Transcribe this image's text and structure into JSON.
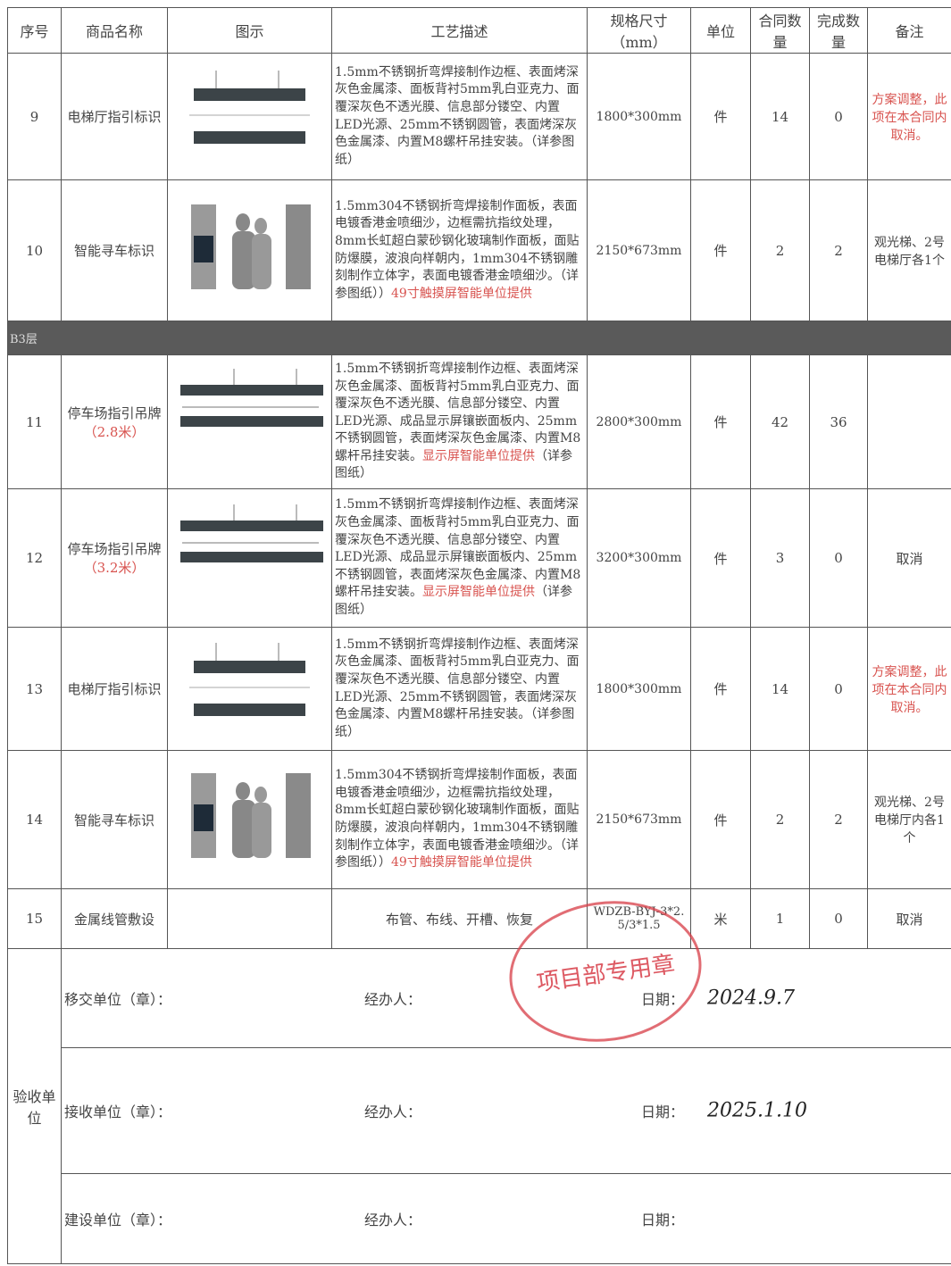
{
  "header": {
    "columns": [
      "序号",
      "商品名称",
      "图示",
      "工艺描述",
      "规格尺寸（mm）",
      "单位",
      "合同数量",
      "完成数量",
      "备注"
    ]
  },
  "rows": [
    {
      "no": "9",
      "name": "电梯厅指引标识",
      "description": "1.5mm不锈钢折弯焊接制作边框、表面烤深灰色金属漆、面板背衬5mm乳白亚克力、面覆深灰色不透光膜、信息部分镂空、内置LED光源、25mm不锈钢圆管，表面烤深灰色金属漆、内置M8螺杆吊挂安装。（详参图纸）",
      "spec": "1800*300mm",
      "unit": "件",
      "contract_qty": "14",
      "done_qty": "0",
      "remark": "方案调整，此项在本合同内取消。",
      "remark_color": "#d8534f"
    },
    {
      "no": "10",
      "name": "智能寻车标识",
      "description": "1.5mm304不锈钢折弯焊接制作面板，表面电镀香港金喷细沙，边框需抗指纹处理，8mm长虹超白蒙砂钢化玻璃制作面板，面贴防爆膜，波浪向样朝内，1mm304不锈钢雕刻制作立体字，表面电镀香港金喷细沙。（详参图纸））",
      "description_note": "49寸触摸屏智能单位提供",
      "spec": "2150*673mm",
      "unit": "件",
      "contract_qty": "2",
      "done_qty": "2",
      "remark": "观光梯、2号电梯厅各1个"
    },
    {
      "section": "B3层"
    },
    {
      "no": "11",
      "name": "停车场指引吊牌",
      "name_note": "（2.8米）",
      "description": "1.5mm不锈钢折弯焊接制作边框、表面烤深灰色金属漆、面板背衬5mm乳白亚克力、面覆深灰色不透光膜、信息部分镂空、内置LED光源、成品显示屏镶嵌面板内、25mm不锈钢圆管，表面烤深灰色金属漆、内置M8螺杆吊挂安装。",
      "description_note": "显示屏智能单位提供",
      "description_tail": "（详参图纸）",
      "spec": "2800*300mm",
      "unit": "件",
      "contract_qty": "42",
      "done_qty": "36"
    },
    {
      "no": "12",
      "name": "停车场指引吊牌",
      "name_note": "（3.2米）",
      "description": "1.5mm不锈钢折弯焊接制作边框、表面烤深灰色金属漆、面板背衬5mm乳白亚克力、面覆深灰色不透光膜、信息部分镂空、内置LED光源、成品显示屏镶嵌面板内、25mm不锈钢圆管，表面烤深灰色金属漆、内置M8螺杆吊挂安装。",
      "description_note": "显示屏智能单位提供",
      "description_tail": "（详参图纸）",
      "spec": "3200*300mm",
      "unit": "件",
      "contract_qty": "3",
      "done_qty": "0",
      "remark": "取消"
    },
    {
      "no": "13",
      "name": "电梯厅指引标识",
      "description": "1.5mm不锈钢折弯焊接制作边框、表面烤深灰色金属漆、面板背衬5mm乳白亚克力、面覆深灰色不透光膜、信息部分镂空、内置LED光源、25mm不锈钢圆管，表面烤深灰色金属漆、内置M8螺杆吊挂安装。（详参图纸）",
      "spec": "1800*300mm",
      "unit": "件",
      "contract_qty": "14",
      "done_qty": "0",
      "remark": "方案调整，此项在本合同内取消。",
      "remark_color": "#d8534f"
    },
    {
      "no": "14",
      "name": "智能寻车标识",
      "description": "1.5mm304不锈钢折弯焊接制作面板，表面电镀香港金喷细沙，边框需抗指纹处理，8mm长虹超白蒙砂钢化玻璃制作面板，面贴防爆膜，波浪向样朝内，1mm304不锈钢雕刻制作立体字，表面电镀香港金喷细沙。（详参图纸））",
      "description_note": "49寸触摸屏智能单位提供",
      "spec": "2150*673mm",
      "unit": "件",
      "contract_qty": "2",
      "done_qty": "2",
      "remark": "观光梯、2号电梯厅内各1个"
    },
    {
      "no": "15",
      "name": "金属线管敷设",
      "description": "布管、布线、开槽、恢复",
      "spec": "WDZB-BYJ-3*2.5/3*1.5",
      "unit": "米",
      "contract_qty": "1",
      "done_qty": "0",
      "remark": "取消"
    }
  ],
  "signoff": {
    "group": "验收单位",
    "parties": [
      {
        "unit": "移交单位（章）：",
        "handler": "经办人：",
        "date_label": "日期：",
        "date": "2024.9.7"
      },
      {
        "unit": "接收单位（章）：",
        "handler": "经办人：",
        "date_label": "日期：",
        "date": "2025.1.10"
      },
      {
        "unit": "建设单位（章）：",
        "handler": "经办人：",
        "date_label": "日期："
      }
    ]
  },
  "stamp": {
    "text": "项目部专用章"
  }
}
